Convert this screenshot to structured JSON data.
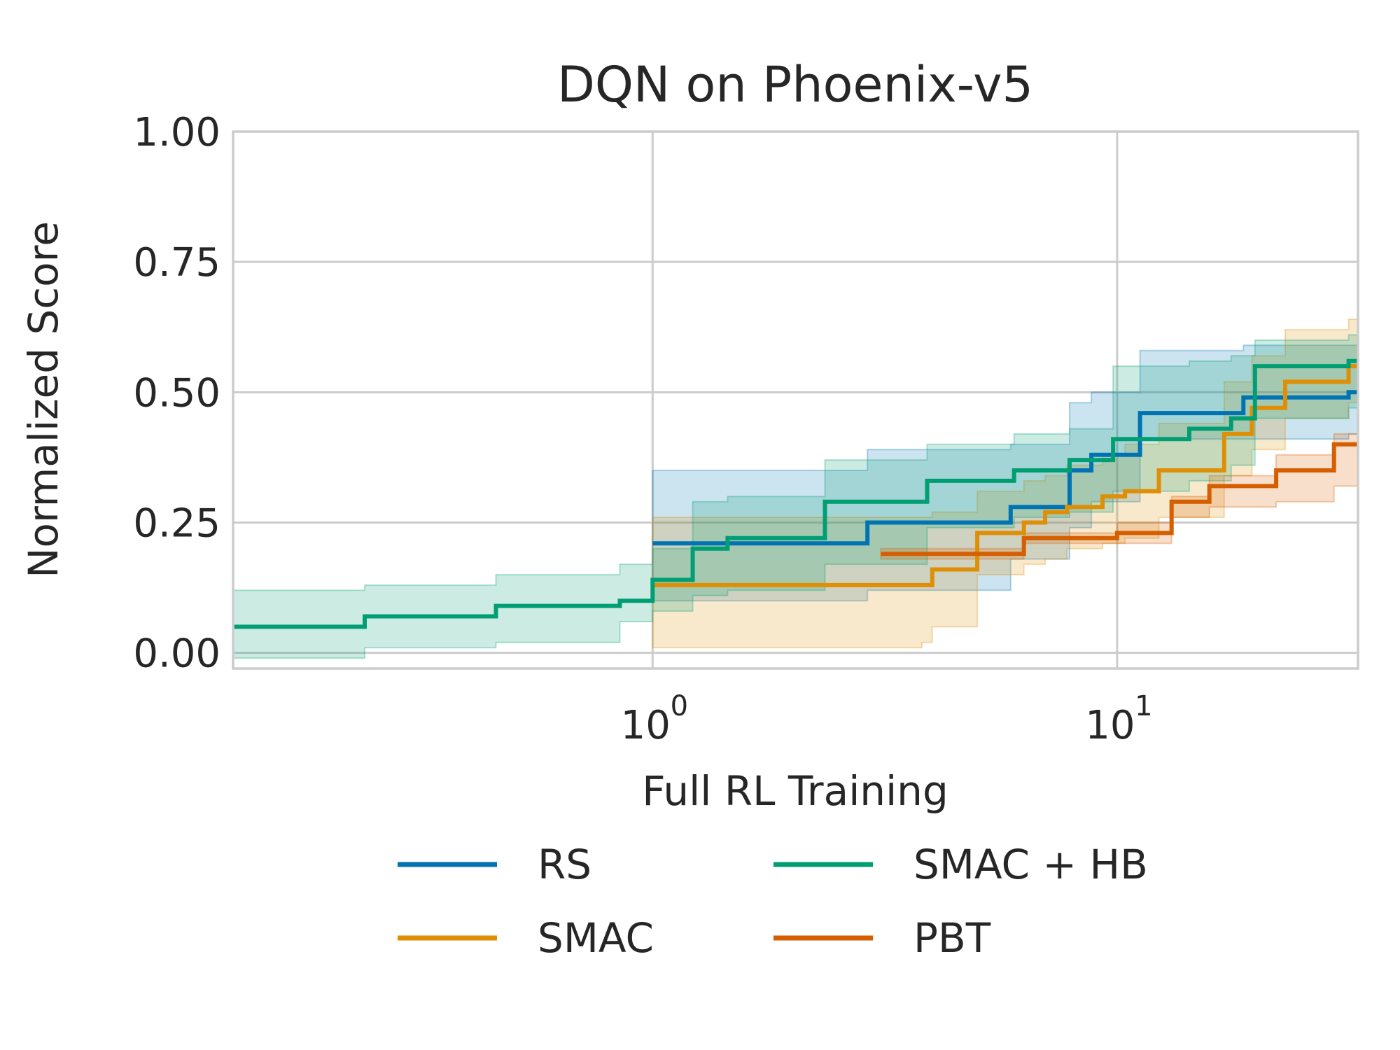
{
  "chart_data": {
    "type": "line",
    "title": "DQN on Phoenix-v5",
    "xlabel": "Full RL Training",
    "ylabel": "Normalized Score",
    "xscale": "log",
    "xlim": [
      0.125,
      33
    ],
    "ylim": [
      -0.03,
      1.0
    ],
    "yticks": [
      {
        "value": 0.0,
        "label": "0.00"
      },
      {
        "value": 0.25,
        "label": "0.25"
      },
      {
        "value": 0.5,
        "label": "0.50"
      },
      {
        "value": 0.75,
        "label": "0.75"
      },
      {
        "value": 1.0,
        "label": "1.00"
      }
    ],
    "xticks": [
      {
        "value": 1,
        "base": "10",
        "exp": "0"
      },
      {
        "value": 10,
        "base": "10",
        "exp": "1"
      }
    ],
    "grid": true,
    "legend": {
      "position": "bottom",
      "columns": 2
    },
    "series": [
      {
        "name": "RS",
        "color": "#0173b2",
        "x": [
          1.0,
          2.9,
          5.9,
          7.9,
          8.8,
          11.2,
          18.7,
          31.5,
          33
        ],
        "y": [
          0.21,
          0.25,
          0.28,
          0.35,
          0.38,
          0.46,
          0.49,
          0.5,
          0.5
        ],
        "lower": [
          0.1,
          0.12,
          0.18,
          0.24,
          0.29,
          0.41,
          0.41,
          0.42,
          0.42
        ],
        "upper": [
          0.35,
          0.39,
          0.4,
          0.48,
          0.5,
          0.58,
          0.59,
          0.59,
          0.59
        ]
      },
      {
        "name": "SMAC",
        "color": "#de8f05",
        "x": [
          1.0,
          3.8,
          4.0,
          5.0,
          6.3,
          7.0,
          7.8,
          9.3,
          10.4,
          12.3,
          17.0,
          19.5,
          23.0,
          31.5,
          33
        ],
        "y": [
          0.13,
          0.13,
          0.16,
          0.23,
          0.25,
          0.27,
          0.28,
          0.3,
          0.31,
          0.35,
          0.42,
          0.47,
          0.52,
          0.55,
          0.55
        ],
        "lower": [
          0.01,
          0.02,
          0.05,
          0.15,
          0.17,
          0.18,
          0.2,
          0.21,
          0.22,
          0.26,
          0.34,
          0.39,
          0.45,
          0.48,
          0.48
        ],
        "upper": [
          0.26,
          0.26,
          0.27,
          0.31,
          0.33,
          0.34,
          0.36,
          0.38,
          0.4,
          0.44,
          0.52,
          0.57,
          0.62,
          0.64,
          0.64
        ]
      },
      {
        "name": "SMAC + HB",
        "color": "#029e73",
        "x": [
          0.125,
          0.24,
          0.46,
          0.85,
          1.0,
          1.22,
          1.45,
          2.35,
          3.9,
          6.0,
          7.9,
          9.8,
          14.3,
          17.6,
          19.8,
          31.5,
          33
        ],
        "y": [
          0.05,
          0.07,
          0.09,
          0.1,
          0.14,
          0.2,
          0.22,
          0.29,
          0.33,
          0.35,
          0.37,
          0.41,
          0.43,
          0.45,
          0.55,
          0.56,
          0.56
        ],
        "lower": [
          -0.01,
          0.01,
          0.02,
          0.06,
          0.08,
          0.11,
          0.12,
          0.17,
          0.24,
          0.26,
          0.27,
          0.31,
          0.33,
          0.36,
          0.45,
          0.47,
          0.47
        ],
        "upper": [
          0.12,
          0.13,
          0.15,
          0.17,
          0.2,
          0.29,
          0.3,
          0.37,
          0.4,
          0.42,
          0.43,
          0.55,
          0.56,
          0.57,
          0.6,
          0.61,
          0.61
        ]
      },
      {
        "name": "PBT",
        "color": "#d55e00",
        "x": [
          3.1,
          4.0,
          6.3,
          10.0,
          13.1,
          15.8,
          22.0,
          29.3,
          33
        ],
        "y": [
          0.19,
          0.19,
          0.22,
          0.23,
          0.29,
          0.32,
          0.35,
          0.4,
          0.4
        ],
        "lower": [
          0.18,
          0.18,
          0.21,
          0.21,
          0.26,
          0.28,
          0.29,
          0.32,
          0.32
        ],
        "upper": [
          0.2,
          0.2,
          0.23,
          0.25,
          0.3,
          0.34,
          0.38,
          0.42,
          0.42
        ]
      }
    ]
  }
}
